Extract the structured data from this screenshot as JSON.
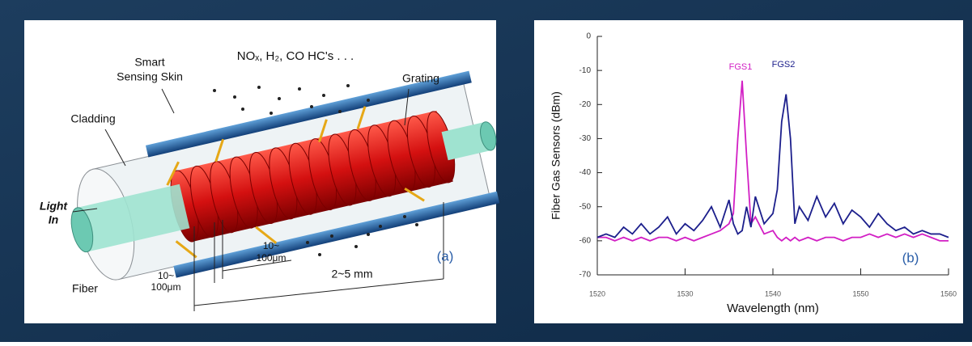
{
  "diagram": {
    "skin": [
      "Smart",
      "Sensing Skin"
    ],
    "gases": "NOₓ, H₂, CO HC's . . .",
    "grating": "Grating",
    "cladding": "Cladding",
    "light_in": [
      "Light",
      "In"
    ],
    "fiber": "Fiber",
    "pitch": [
      "10~",
      "100μm"
    ],
    "width": [
      "10~",
      "100μm"
    ],
    "length": "2~5 mm",
    "panel_label": "(a)"
  },
  "chart_data": {
    "type": "line",
    "x_label": "Wavelength (nm)",
    "y_label": "Fiber Gas Sensors (dBm)",
    "annotations": [
      "FGS1",
      "FGS2"
    ],
    "panel_label": "(b)",
    "x": [
      1520,
      1521,
      1522,
      1523,
      1524,
      1525,
      1526,
      1527,
      1528,
      1529,
      1530,
      1531,
      1532,
      1533,
      1534,
      1535,
      1535.5,
      1536,
      1536.5,
      1537,
      1537.5,
      1538,
      1539,
      1540,
      1540.5,
      1541,
      1541.5,
      1542,
      1542.5,
      1543,
      1544,
      1545,
      1546,
      1547,
      1548,
      1549,
      1550,
      1551,
      1552,
      1553,
      1554,
      1555,
      1556,
      1557,
      1558,
      1559,
      1560
    ],
    "series": [
      {
        "name": "FGS1",
        "color": "#d21fc4",
        "values": [
          -59,
          -59,
          -60,
          -59,
          -60,
          -59,
          -60,
          -59,
          -59,
          -60,
          -59,
          -60,
          -59,
          -58,
          -57,
          -55,
          -52,
          -30,
          -13,
          -35,
          -55,
          -53,
          -58,
          -57,
          -59,
          -60,
          -59,
          -60,
          -59,
          -60,
          -59,
          -60,
          -59,
          -59,
          -60,
          -59,
          -59,
          -58,
          -59,
          -58,
          -59,
          -58,
          -59,
          -58,
          -59,
          -60,
          -60
        ]
      },
      {
        "name": "FGS2",
        "color": "#1c1f8c",
        "values": [
          -59,
          -58,
          -59,
          -56,
          -58,
          -55,
          -58,
          -56,
          -53,
          -58,
          -55,
          -57,
          -54,
          -50,
          -56,
          -48,
          -55,
          -58,
          -57,
          -50,
          -56,
          -47,
          -55,
          -52,
          -45,
          -25,
          -17,
          -30,
          -55,
          -50,
          -54,
          -47,
          -53,
          -49,
          -55,
          -51,
          -53,
          -56,
          -52,
          -55,
          -57,
          -56,
          -58,
          -57,
          -58,
          -58,
          -59
        ]
      }
    ],
    "xlim": [
      1520,
      1560
    ],
    "xticks": [
      1520,
      1530,
      1540,
      1550,
      1560
    ],
    "ylim": [
      -70,
      0
    ],
    "yticks": [
      0,
      -10,
      -20,
      -30,
      -40,
      -50,
      -60,
      -70
    ]
  }
}
